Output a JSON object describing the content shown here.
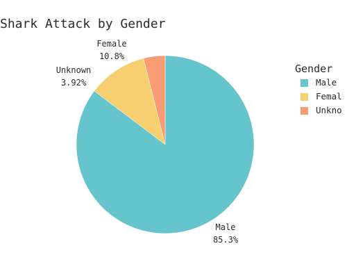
{
  "chart_data": {
    "type": "pie",
    "title": "Shark Attack by Gender",
    "legend_title": "Gender",
    "legend_position": "right",
    "slices": [
      {
        "label": "Male",
        "value": 85.3,
        "display": "85.3%",
        "color": "#66c5cc"
      },
      {
        "label": "Female",
        "value": 10.8,
        "display": "10.8%",
        "color": "#f6cf71"
      },
      {
        "label": "Unknown",
        "value": 3.92,
        "display": "3.92%",
        "color": "#f89c74"
      }
    ],
    "legend_entries": [
      {
        "label": "Male",
        "color": "#66c5cc"
      },
      {
        "label": "Femal",
        "color": "#f6cf71"
      },
      {
        "label": "Unkno",
        "color": "#f89c74"
      }
    ]
  }
}
